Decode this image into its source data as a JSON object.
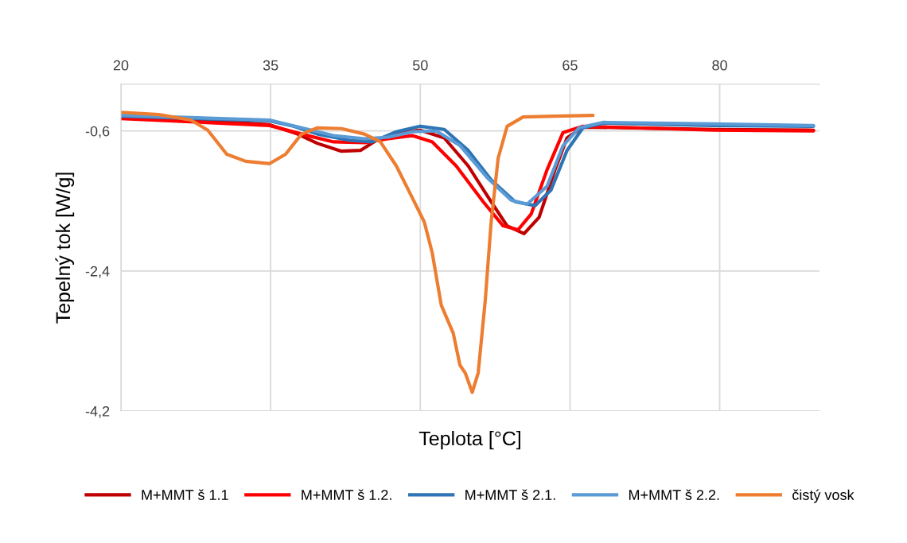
{
  "chart_data": {
    "type": "line",
    "xlabel": "Teplota [°C]",
    "ylabel": "Tepelný tok [W/g]",
    "xlim": [
      20,
      90
    ],
    "xticks": [
      20,
      35,
      50,
      65,
      80
    ],
    "ylim": [
      -4.2,
      0
    ],
    "yticks": [
      {
        "value": -0.6,
        "label": "-0,6"
      },
      {
        "value": -2.4,
        "label": "-2,4"
      },
      {
        "value": -4.2,
        "label": "-4,2"
      }
    ],
    "grid": true,
    "legend": "bottom",
    "marker": "none",
    "line_style": "solid",
    "series": [
      {
        "name": "M+MMT š 1.1",
        "color": "#c00000",
        "x": [
          20,
          27.8,
          34.9,
          37.7,
          39.7,
          42.1,
          44.0,
          45.6,
          47.6,
          50,
          52.4,
          54.8,
          57.1,
          58.7,
          60.4,
          61.9,
          63.5,
          64.7,
          66.3,
          71.4,
          79.4,
          89.4
        ],
        "values": [
          -0.43,
          -0.46,
          -0.52,
          -0.64,
          -0.76,
          -0.86,
          -0.85,
          -0.72,
          -0.62,
          -0.59,
          -0.69,
          -1.05,
          -1.51,
          -1.82,
          -1.92,
          -1.71,
          -1.1,
          -0.69,
          -0.55,
          -0.56,
          -0.58,
          -0.59
        ]
      },
      {
        "name": "M+MMT š 1.2.",
        "color": "#ff0000",
        "x": [
          20,
          34.9,
          38.1,
          41.3,
          44.4,
          46.8,
          49.2,
          51.2,
          53.6,
          56.3,
          58.3,
          59.8,
          61.1,
          62.7,
          64.3,
          66.3,
          79.4,
          89.4
        ],
        "values": [
          -0.44,
          -0.53,
          -0.64,
          -0.74,
          -0.75,
          -0.7,
          -0.66,
          -0.74,
          -1.05,
          -1.51,
          -1.82,
          -1.87,
          -1.67,
          -1.1,
          -0.62,
          -0.54,
          -0.59,
          -0.6
        ]
      },
      {
        "name": "M+MMT š 2.1.",
        "color": "#2e75b6",
        "x": [
          20,
          34.9,
          37.3,
          39.7,
          42.9,
          45.2,
          47.6,
          50,
          52.4,
          54.8,
          57.1,
          59.5,
          61.5,
          63.1,
          64.7,
          66.3,
          68.3,
          79.4,
          89.4
        ],
        "values": [
          -0.41,
          -0.47,
          -0.54,
          -0.64,
          -0.72,
          -0.74,
          -0.61,
          -0.54,
          -0.58,
          -0.85,
          -1.23,
          -1.51,
          -1.56,
          -1.36,
          -0.85,
          -0.56,
          -0.5,
          -0.53,
          -0.54
        ]
      },
      {
        "name": "M+MMT š 2.2.",
        "color": "#5b9bd5",
        "x": [
          20,
          34.9,
          38.1,
          41.3,
          44.4,
          46.8,
          49.2,
          51.6,
          54.0,
          56.7,
          59.1,
          60.7,
          62.7,
          64.3,
          65.9,
          68.3,
          79.4,
          89.4
        ],
        "values": [
          -0.4,
          -0.46,
          -0.56,
          -0.66,
          -0.7,
          -0.68,
          -0.61,
          -0.6,
          -0.79,
          -1.2,
          -1.49,
          -1.54,
          -1.31,
          -0.79,
          -0.56,
          -0.49,
          -0.51,
          -0.53
        ]
      },
      {
        "name": "čistý vosk",
        "color": "#ed7d31",
        "x": [
          20,
          23.8,
          27,
          28.7,
          30.6,
          32.5,
          34.9,
          36.5,
          38.1,
          39.7,
          42.1,
          44.4,
          46.0,
          47.6,
          49.2,
          50.4,
          51.2,
          52.1,
          53.3,
          53.97,
          54.5,
          55.2,
          55.8,
          56.5,
          57.1,
          57.8,
          58.7,
          60.3,
          63.5,
          67.3
        ],
        "values": [
          -0.36,
          -0.39,
          -0.46,
          -0.59,
          -0.9,
          -0.99,
          -1.02,
          -0.9,
          -0.64,
          -0.56,
          -0.57,
          -0.64,
          -0.74,
          -1.05,
          -1.46,
          -1.77,
          -2.17,
          -2.84,
          -3.2,
          -3.61,
          -3.71,
          -3.96,
          -3.71,
          -2.79,
          -1.77,
          -0.95,
          -0.54,
          -0.42,
          -0.41,
          -0.4
        ]
      }
    ]
  }
}
